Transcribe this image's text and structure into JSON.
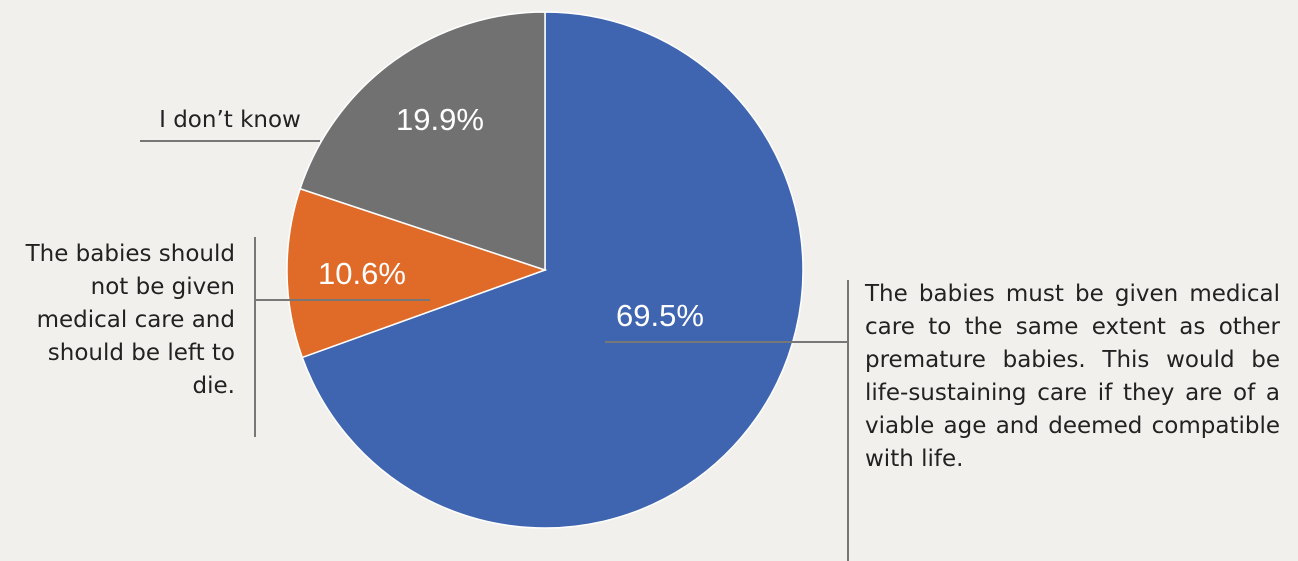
{
  "chart_data": {
    "type": "pie",
    "categories": [
      "The babies must be given medical care to the same extent as other premature babies. This would be life-sustaining care if they are of a viable age and deemed compatible with life.",
      "The babies should not be given medical care and should be left to die.",
      "I don’t know"
    ],
    "values": [
      69.5,
      10.6,
      19.9
    ],
    "value_labels": [
      "69.5%",
      "10.6%",
      "19.9%"
    ],
    "colors": [
      "#4065b0",
      "#e06a28",
      "#717171"
    ]
  }
}
